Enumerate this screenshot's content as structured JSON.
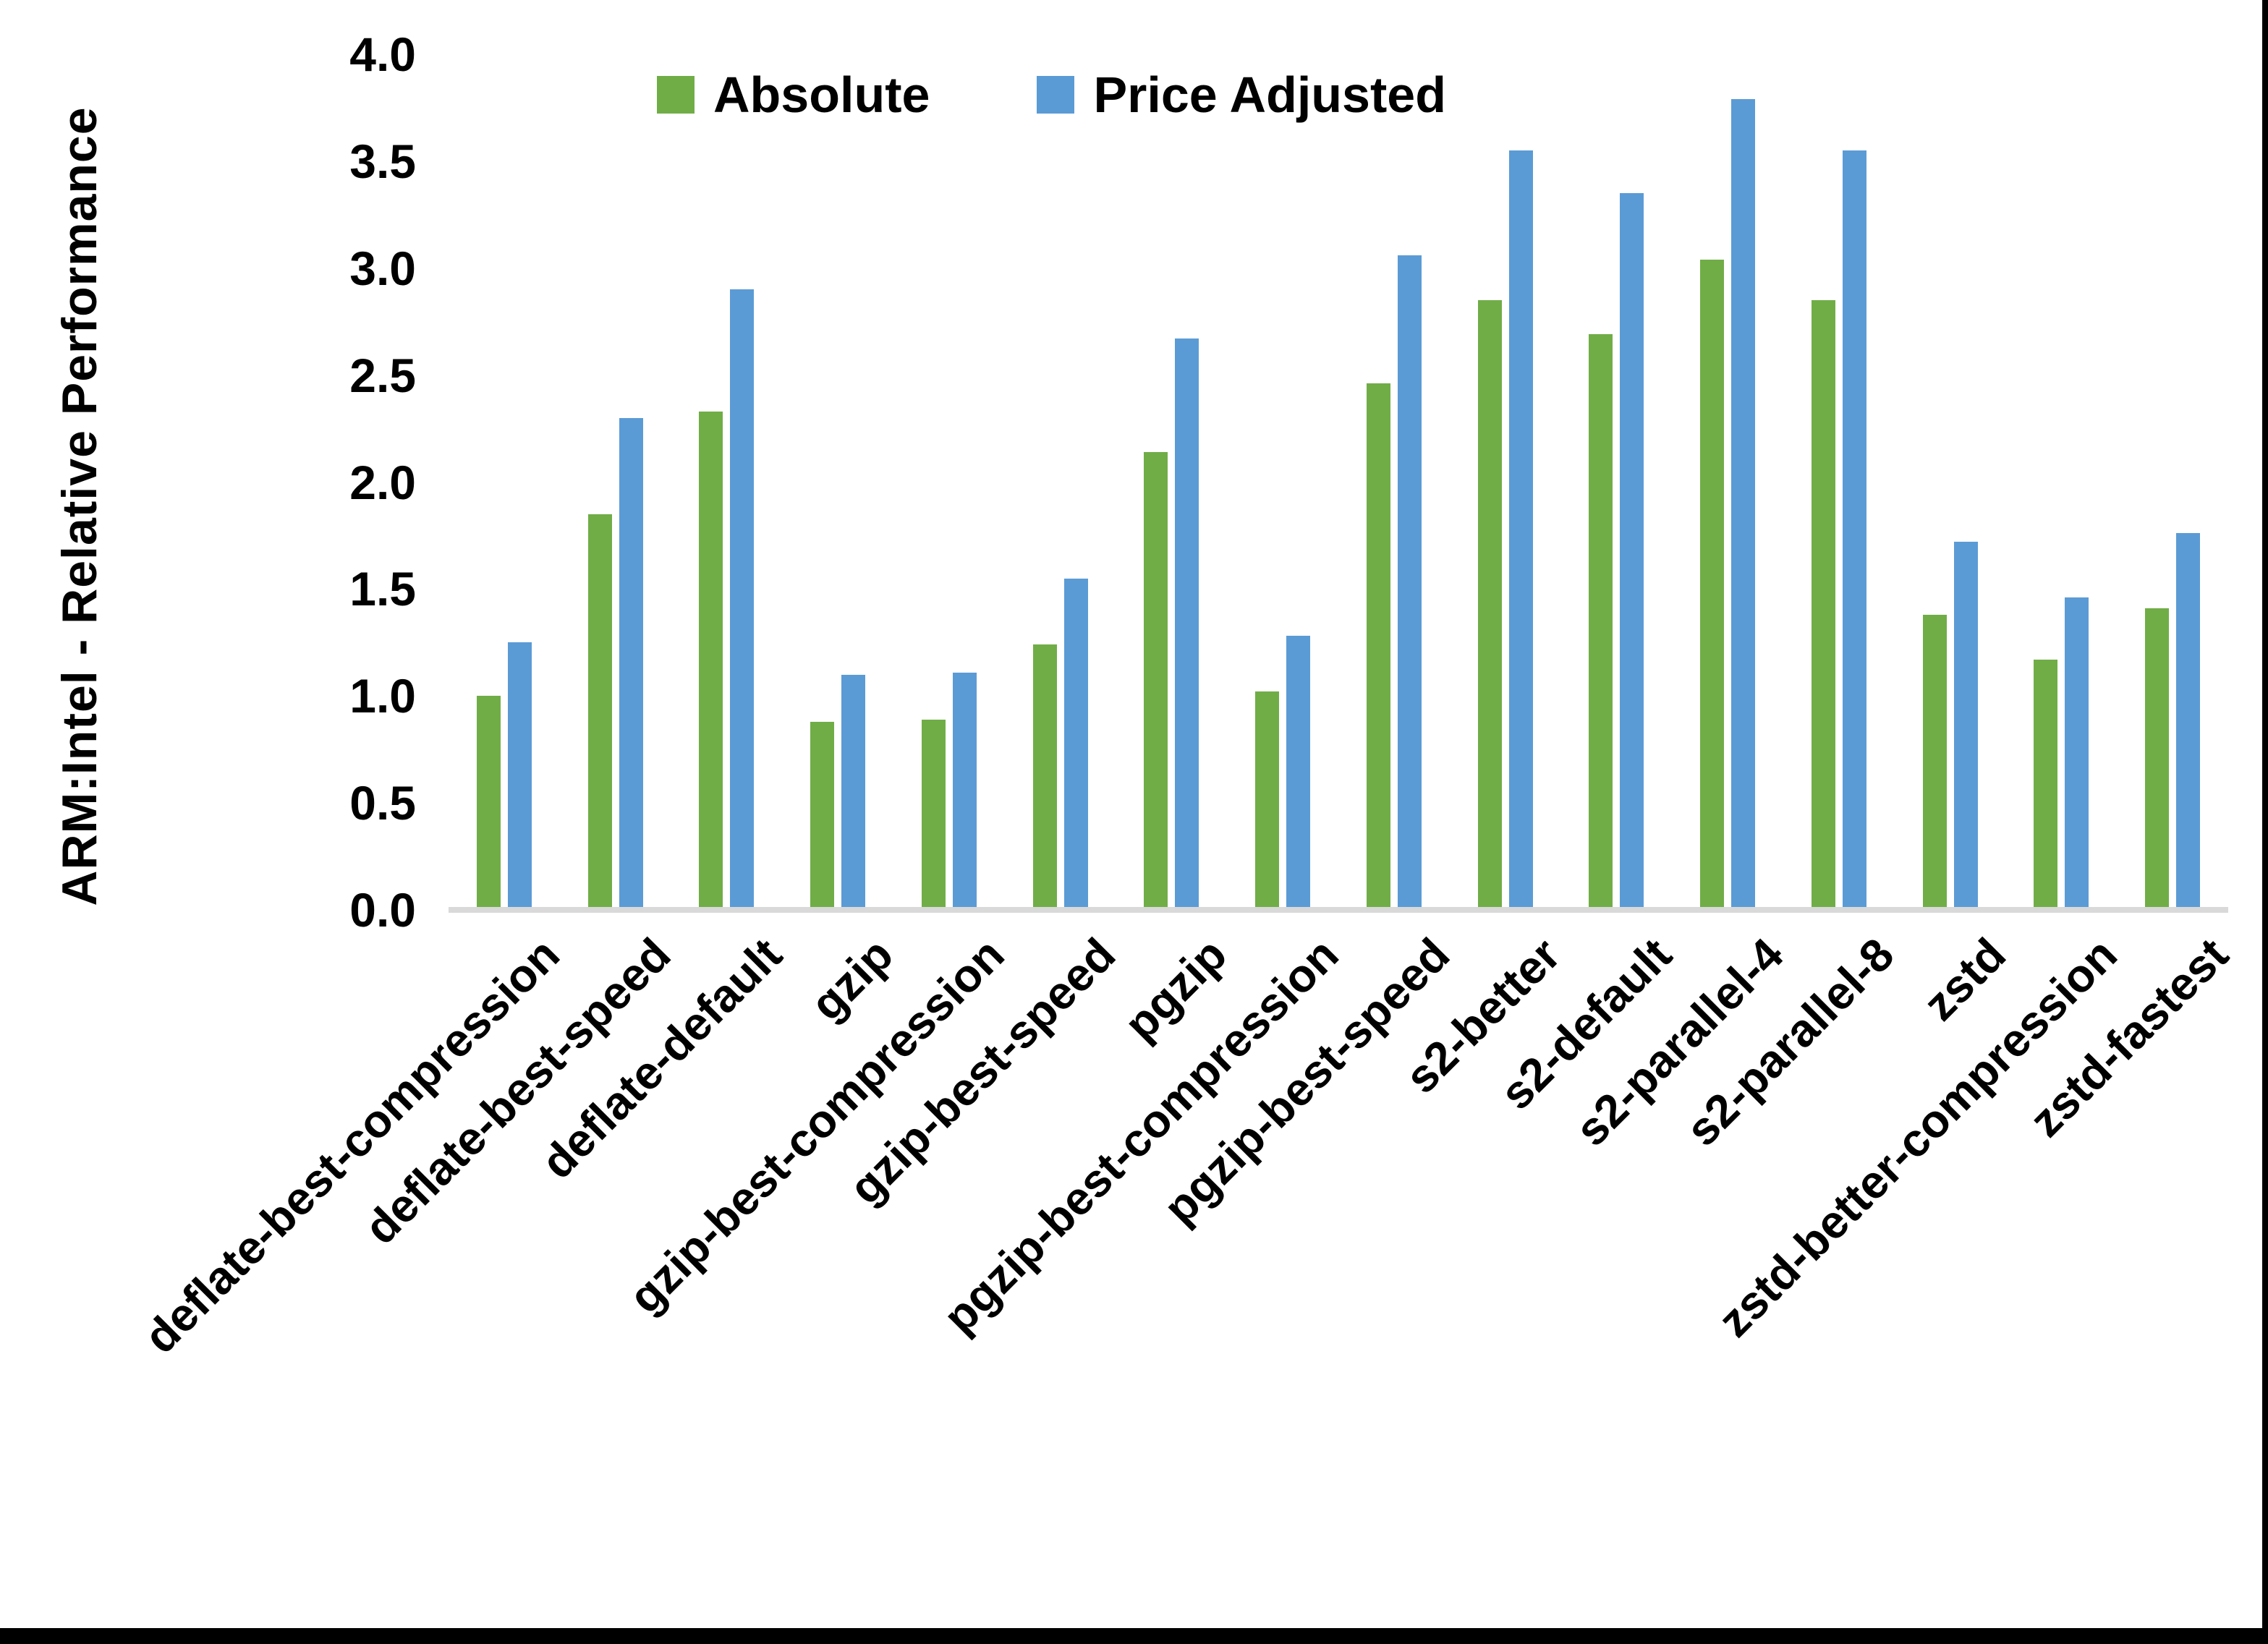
{
  "chart_data": {
    "type": "bar",
    "title": "",
    "ylabel": "ARM:Intel - Relative Performance",
    "xlabel": "",
    "ylim": [
      0.0,
      4.0
    ],
    "ytick_labels": [
      "0.0",
      "0.5",
      "1.0",
      "1.5",
      "2.0",
      "2.5",
      "3.0",
      "3.5",
      "4.0"
    ],
    "grid": "off",
    "legend_position": "top-center",
    "categories": [
      "deflate-best-compression",
      "deflate-best-speed",
      "deflate-default",
      "gzip",
      "gzip-best-compression",
      "gzip-best-speed",
      "pgzip",
      "pgzip-best-compression",
      "pgzip-best-speed",
      "s2-better",
      "s2-default",
      "s2-parallel-4",
      "s2-parallel-8",
      "zstd",
      "zstd-better-compression",
      "zstd-fastest"
    ],
    "series": [
      {
        "name": "Absolute",
        "color": "#70AD47",
        "values": [
          1.0,
          1.85,
          2.33,
          0.88,
          0.89,
          1.24,
          2.14,
          1.02,
          2.46,
          2.85,
          2.69,
          3.04,
          2.85,
          1.38,
          1.17,
          1.41
        ]
      },
      {
        "name": "Price Adjusted",
        "color": "#5B9BD5",
        "values": [
          1.25,
          2.3,
          2.9,
          1.1,
          1.11,
          1.55,
          2.67,
          1.28,
          3.06,
          3.55,
          3.35,
          3.79,
          3.55,
          1.72,
          1.46,
          1.76
        ]
      }
    ],
    "axis_line_color": "#D9D9D9",
    "text_color": "#000000"
  },
  "legend": {
    "absolute_label": "Absolute",
    "price_adjusted_label": "Price Adjusted"
  },
  "y_axis": {
    "title": "ARM:Intel - Relative Performance"
  }
}
